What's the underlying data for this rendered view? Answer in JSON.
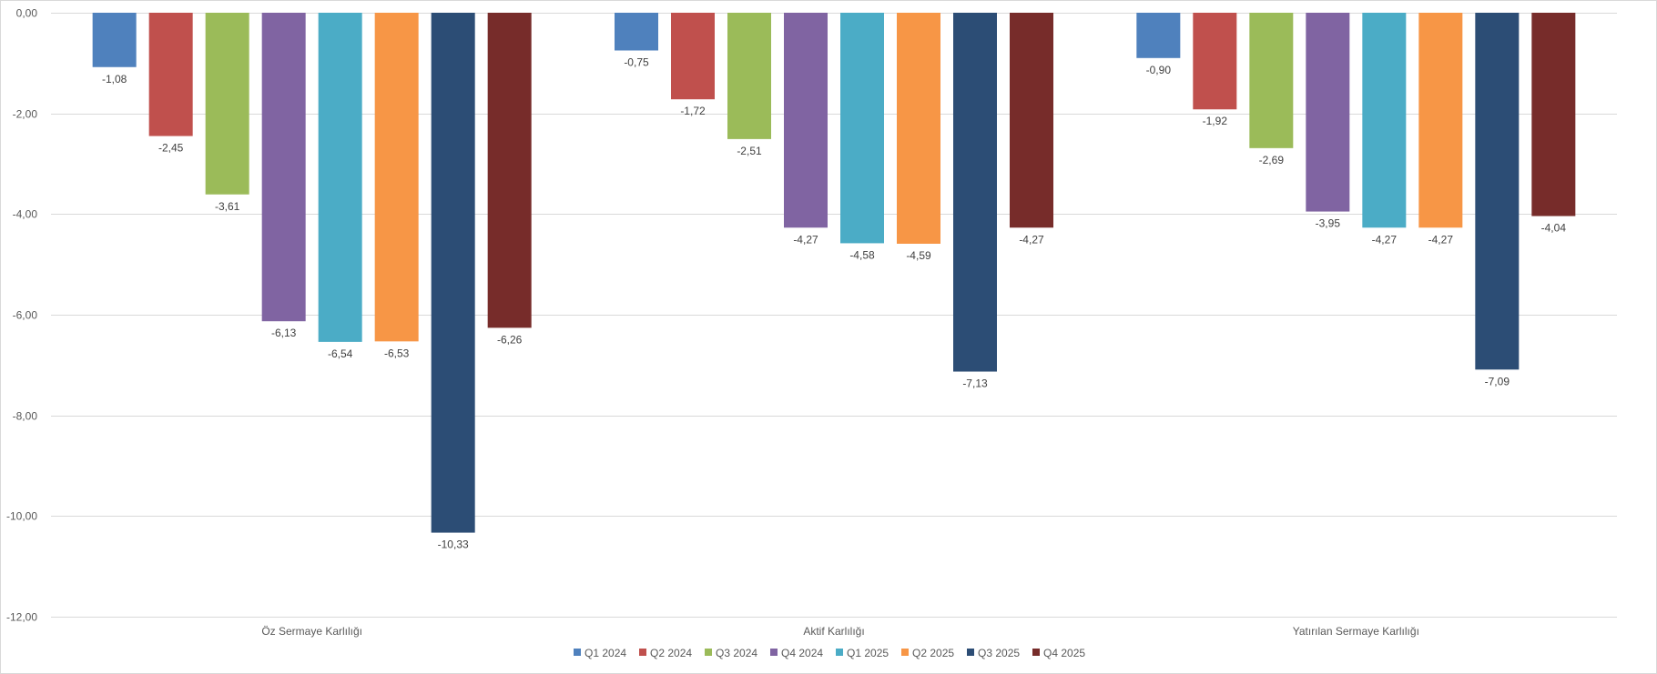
{
  "chart_data": {
    "type": "bar",
    "categories": [
      "Öz Sermaye Karlılığı",
      "Aktif Karlılığı",
      "Yatırılan Sermaye Karlılığı"
    ],
    "series": [
      {
        "name": "Q1 2024",
        "color": "#4f81bd",
        "values": [
          -1.08,
          -0.75,
          -0.9
        ],
        "labels": [
          "-1,08",
          "-0,75",
          "-0,90"
        ]
      },
      {
        "name": "Q2 2024",
        "color": "#c0504d",
        "values": [
          -2.45,
          -1.72,
          -1.92
        ],
        "labels": [
          "-2,45",
          "-1,72",
          "-1,92"
        ]
      },
      {
        "name": "Q3 2024",
        "color": "#9bbb59",
        "values": [
          -3.61,
          -2.51,
          -2.69
        ],
        "labels": [
          "-3,61",
          "-2,51",
          "-2,69"
        ]
      },
      {
        "name": "Q4 2024",
        "color": "#8064a2",
        "values": [
          -6.13,
          -4.27,
          -3.95
        ],
        "labels": [
          "-6,13",
          "-4,27",
          "-3,95"
        ]
      },
      {
        "name": "Q1 2025",
        "color": "#4bacc6",
        "values": [
          -6.54,
          -4.58,
          -4.27
        ],
        "labels": [
          "-6,54",
          "-4,58",
          "-4,27"
        ]
      },
      {
        "name": "Q2 2025",
        "color": "#f79646",
        "values": [
          -6.53,
          -4.59,
          -4.27
        ],
        "labels": [
          "-6,53",
          "-4,59",
          "-4,27"
        ]
      },
      {
        "name": "Q3 2025",
        "color": "#2c4d75",
        "values": [
          -10.33,
          -7.13,
          -7.09
        ],
        "labels": [
          "-10,33",
          "-7,13",
          "-7,09"
        ]
      },
      {
        "name": "Q4 2025",
        "color": "#772c2a",
        "values": [
          -6.26,
          -4.27,
          -4.04
        ],
        "labels": [
          "-6,26",
          "-4,27",
          "-4,04"
        ]
      }
    ],
    "yticks": [
      0,
      -2,
      -4,
      -6,
      -8,
      -10,
      -12
    ],
    "ytick_labels": [
      "0,00",
      "-2,00",
      "-4,00",
      "-6,00",
      "-8,00",
      "-10,00",
      "-12,00"
    ],
    "ylim": [
      -12,
      0
    ],
    "grid": true,
    "legend": "bottom"
  }
}
